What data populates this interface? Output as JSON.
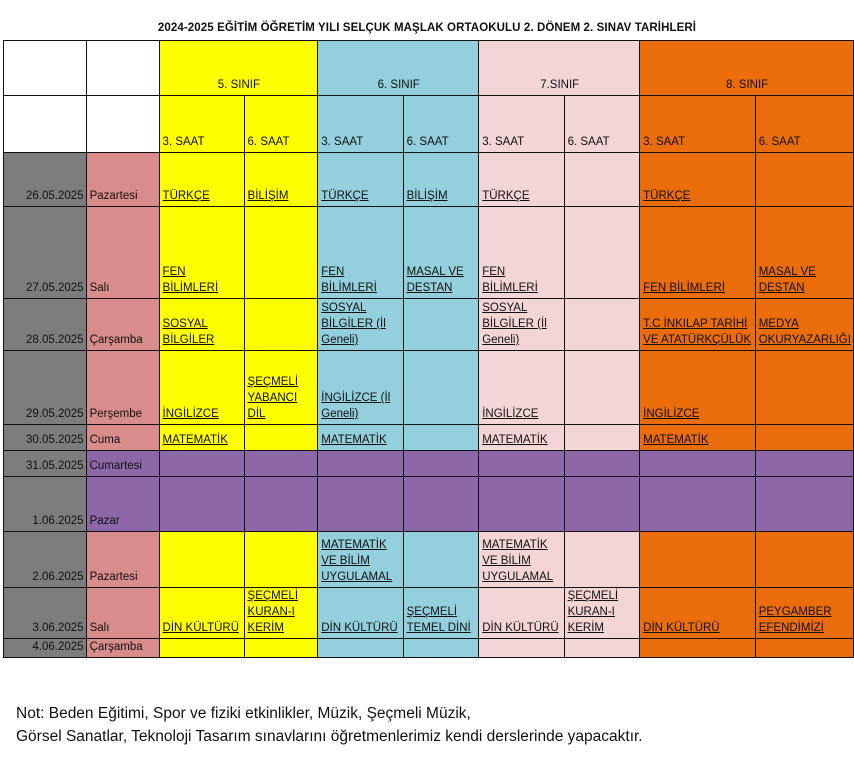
{
  "title": "2024-2025 EĞİTİM ÖĞRETİM YILI SELÇUK MAŞLAK ORTAOKULU 2. DÖNEM 2. SINAV TARİHLERİ",
  "grades": [
    "5. SINIF",
    "6. SINIF",
    "7.SINIF",
    "8. SINIF"
  ],
  "periods": [
    "3. SAAT",
    "6. SAAT",
    "3. SAAT",
    "6. SAAT",
    "3. SAAT",
    "6. SAAT",
    "3. SAAT",
    "6. SAAT"
  ],
  "colors": {
    "grade5": "#ffff00",
    "grade6": "#93cfdd",
    "grade7": "#f4d5d5",
    "grade8": "#ea6c0a",
    "date": "#7d7d7d",
    "day": "#d98c8c",
    "weekend": "#8c68a8"
  },
  "rows": [
    {
      "date": "26.05.2025",
      "day": "Pazartesi",
      "cells": [
        "TÜRKÇE",
        "BİLİŞİM",
        "TÜRKÇE",
        "BİLİŞİM",
        "TÜRKÇE",
        "",
        "TÜRKÇE",
        ""
      ]
    },
    {
      "date": "27.05.2025",
      "day": "Salı",
      "cells": [
        "FEN BİLİMLERİ",
        "",
        "FEN BİLİMLERİ",
        "MASAL VE DESTAN",
        "FEN BİLİMLERİ",
        "",
        "FEN BİLİMLERİ",
        "MASAL VE DESTAN"
      ]
    },
    {
      "date": "28.05.2025",
      "day": "Çarşamba",
      "cells": [
        "SOSYAL BİLGİLER",
        "",
        "SOSYAL BİLGİLER (İl Geneli)",
        "",
        "SOSYAL BİLGİLER (İl Geneli)",
        "",
        "T.C İNKILAP TARİHİ VE ATATÜRKÇÜLÜK",
        "MEDYA OKURYAZARLIĞI"
      ]
    },
    {
      "date": "29.05.2025",
      "day": "Perşembe",
      "cells": [
        "İNGİLİZCE",
        "ŞEÇMELİ YABANCI DİL",
        "İNGİLİZCE (İl Geneli)",
        "",
        "İNGİLİZCE",
        "",
        "İNGİLİZCE",
        ""
      ]
    },
    {
      "date": "30.05.2025",
      "day": "Cuma",
      "cells": [
        "MATEMATİK",
        "",
        "MATEMATİK",
        "",
        "MATEMATİK",
        "",
        "MATEMATİK",
        ""
      ]
    },
    {
      "date": "31.05.2025",
      "day": "Cumartesi",
      "cells": [
        "",
        "",
        "",
        "",
        "",
        "",
        "",
        ""
      ]
    },
    {
      "date": "1.06.2025",
      "day": "Pazar",
      "cells": [
        "",
        "",
        "",
        "",
        "",
        "",
        "",
        ""
      ]
    },
    {
      "date": "2.06.2025",
      "day": "Pazartesi",
      "cells": [
        "",
        "",
        "MATEMATİK VE BİLİM UYGULAMAL",
        "",
        "MATEMATİK VE BİLİM UYGULAMAL",
        "",
        "",
        ""
      ]
    },
    {
      "date": "3.06.2025",
      "day": "Salı",
      "cells": [
        "DİN KÜLTÜRÜ",
        "ŞEÇMELİ KURAN-I KERİM",
        "DİN KÜLTÜRÜ",
        "ŞEÇMELİ TEMEL DİNİ",
        "DİN KÜLTÜRÜ",
        "ŞEÇMELİ KURAN-I KERİM",
        "DİN KÜLTÜRÜ",
        "PEYGAMBER EFENDİMİZİ"
      ]
    },
    {
      "date": "4.06.2025",
      "day": "Çarşamba",
      "cells": [
        "",
        "",
        "",
        "",
        "",
        "",
        "",
        ""
      ]
    }
  ],
  "note": {
    "line1": "Not: Beden Eğitimi,  Spor ve fiziki etkinlikler,  Müzik, Şeçmeli Müzik,",
    "line2": "Görsel Sanatlar, Teknoloji Tasarım sınavlarını öğretmenlerimiz kendi derslerinde yapacaktır."
  }
}
